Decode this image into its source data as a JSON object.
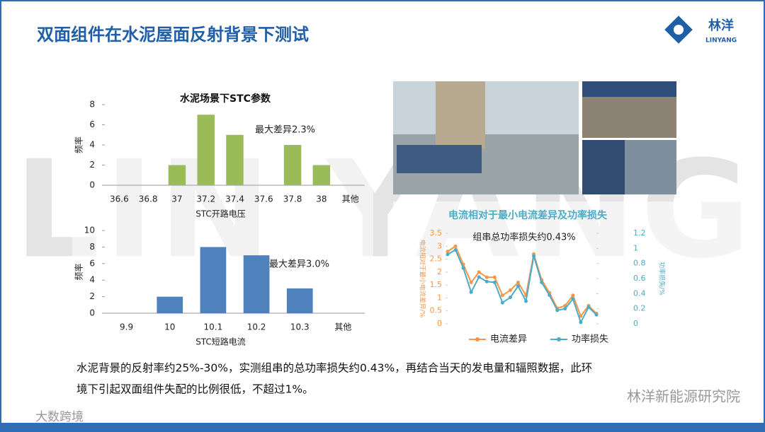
{
  "header": {
    "title": "双面组件在水泥屋面反射背景下测试",
    "logo_cn": "林洋",
    "logo_en": "LINYANG"
  },
  "watermark": "LIN YANG",
  "chart_data": [
    {
      "type": "bar",
      "title": "水泥场景下STC参数",
      "annotation": "最大差异2.3%",
      "xlabel": "STC开路电压",
      "ylabel": "频率",
      "categories": [
        "36.6",
        "36.8",
        "37",
        "37.2",
        "37.4",
        "37.6",
        "37.8",
        "38",
        "其他"
      ],
      "values": [
        0,
        0,
        2,
        7,
        5,
        0,
        4,
        2,
        0
      ],
      "color": "#9bbb59",
      "ylim": [
        0,
        8
      ],
      "yticks": [
        0,
        2,
        4,
        6,
        8
      ]
    },
    {
      "type": "bar",
      "annotation": "最大差异3.0%",
      "xlabel": "STC短路电流",
      "ylabel": "频率",
      "categories": [
        "9.9",
        "10",
        "10.1",
        "10.2",
        "10.3",
        "其他"
      ],
      "values": [
        0,
        2,
        8,
        7,
        3,
        0
      ],
      "color": "#4f81bd",
      "ylim": [
        0,
        10
      ],
      "yticks": [
        0,
        2,
        4,
        6,
        8,
        10
      ]
    },
    {
      "type": "line",
      "title": "电流相对于最小电流差异及功率损失",
      "annotation": "组串总功率损失约0.43%",
      "ylabel": "电流相对于最小电流差异/%",
      "y2label": "功率损失/%",
      "series": [
        {
          "name": "电流差异",
          "color": "#f79646",
          "values": [
            2.8,
            3.0,
            2.3,
            1.6,
            2.0,
            1.8,
            1.8,
            1.1,
            1.3,
            1.6,
            1.1,
            2.7,
            1.7,
            1.2,
            0.6,
            0.7,
            1.1,
            0.3,
            0.7,
            0.4
          ]
        },
        {
          "name": "功率损失",
          "color": "#4bacc6",
          "axis": "y2",
          "values": [
            0.92,
            0.98,
            0.74,
            0.42,
            0.62,
            0.56,
            0.55,
            0.28,
            0.35,
            0.5,
            0.3,
            0.9,
            0.55,
            0.38,
            0.18,
            0.2,
            0.33,
            0.02,
            0.22,
            0.12
          ]
        }
      ],
      "ylim": [
        0,
        3.5
      ],
      "yticks": [
        0,
        0.5,
        1,
        1.5,
        2,
        2.5,
        3,
        3.5
      ],
      "y2lim": [
        0,
        1.2
      ],
      "y2ticks": [
        0,
        0.2,
        0.4,
        0.6,
        0.8,
        1,
        1.2
      ],
      "legend": "bottom"
    }
  ],
  "body": {
    "lines": [
      "水泥背景的反射率约25%-30%，实测组串的总功率损失约0.43%，再结合当天的发电量和辐照数据，此环",
      "境下引起双面组件失配的比例很低，不超过1%。"
    ]
  },
  "footer": {
    "left": "大数跨境",
    "right": "林洋新能源研究院"
  }
}
